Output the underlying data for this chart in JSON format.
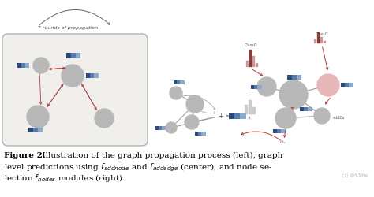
{
  "fig_width": 4.74,
  "fig_height": 2.5,
  "dpi": 100,
  "node_gray": "#b8b8b8",
  "node_pink": "#e8b8b8",
  "arrow_red": "#b04040",
  "arrow_dark": "#884444",
  "blue_dark": "#2a4a7a",
  "blue_mid": "#5a7aaa",
  "blue_light": "#8aaace",
  "line_gray": "#999999",
  "box_bg": "#f0efeb",
  "box_edge": "#aaaaaa",
  "bar_red": "#993333",
  "bar_pink": "#cc9999",
  "caption_bold": "Figure 2.",
  "caption_rest1": "  Illustration of the graph propagation process (left), graph",
  "caption_line2": "level predictions using $f_{addnode}$ and $f_{addedge}$ (center), and node se-",
  "caption_line3": "lection $f_{nodes}$ modules (right).",
  "watermark": "知乎 @Y.Shu",
  "propagation_label": "T rounds of propagation",
  "font_caption": 7.5,
  "font_small": 4.5,
  "font_label": 4.0
}
